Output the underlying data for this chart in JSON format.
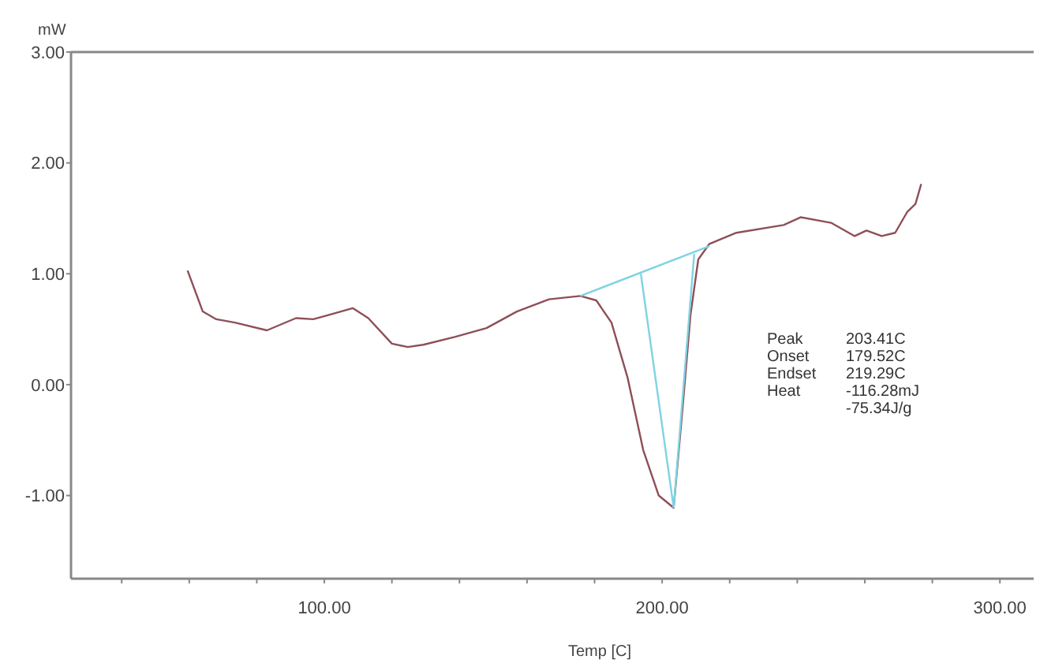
{
  "chart_data": {
    "type": "line",
    "xlabel": "Temp [C]",
    "ylabel": "mW",
    "xlim": [
      25,
      310
    ],
    "ylim": [
      -1.75,
      3
    ],
    "xticks": [
      {
        "value": 40,
        "label": null
      },
      {
        "value": 60,
        "label": null
      },
      {
        "value": 80,
        "label": null
      },
      {
        "value": 100,
        "label": "100.00"
      },
      {
        "value": 120,
        "label": null
      },
      {
        "value": 140,
        "label": null
      },
      {
        "value": 160,
        "label": null
      },
      {
        "value": 180,
        "label": null
      },
      {
        "value": 200,
        "label": "200.00"
      },
      {
        "value": 220,
        "label": null
      },
      {
        "value": 240,
        "label": null
      },
      {
        "value": 260,
        "label": null
      },
      {
        "value": 280,
        "label": null
      },
      {
        "value": 300,
        "label": "300.00"
      }
    ],
    "yticks": [
      {
        "value": -1,
        "label": "-1.00"
      },
      {
        "value": 0,
        "label": "0.00"
      },
      {
        "value": 1,
        "label": "1.00"
      },
      {
        "value": 2,
        "label": "2.00"
      },
      {
        "value": 3,
        "label": "3.00"
      }
    ],
    "grid": false,
    "marker": "none",
    "line_style": "solid",
    "series": [
      {
        "color": "#8e4f58",
        "x": [
          59.5,
          64,
          68,
          73.5,
          83,
          91.6,
          96.7,
          101.4,
          108.4,
          113,
          120,
          124.7,
          129.3,
          138.6,
          148,
          157,
          166.5,
          175.8,
          180.5,
          185,
          189.8,
          194.4,
          199,
          203.41,
          206,
          208.4,
          210.7,
          214,
          222,
          236,
          241,
          250,
          257,
          260.5,
          265,
          269,
          272.6,
          275,
          276.7
        ],
        "values": [
          1.03,
          0.66,
          0.59,
          0.56,
          0.49,
          0.6,
          0.59,
          0.63,
          0.69,
          0.6,
          0.37,
          0.34,
          0.36,
          0.43,
          0.51,
          0.66,
          0.77,
          0.8,
          0.76,
          0.56,
          0.06,
          -0.59,
          -1.0,
          -1.11,
          -0.23,
          0.63,
          1.13,
          1.27,
          1.37,
          1.44,
          1.51,
          1.46,
          1.34,
          1.39,
          1.34,
          1.37,
          1.56,
          1.63,
          1.81
        ]
      },
      {
        "color": "#7fd3e3",
        "x": [
          175.8,
          214
        ],
        "values": [
          0.8,
          1.25
        ]
      },
      {
        "color": "#7fd3e3",
        "x": [
          193.7,
          203.41
        ],
        "values": [
          1.0,
          -1.11
        ]
      },
      {
        "color": "#7fd3e3",
        "x": [
          209.5,
          203.41
        ],
        "values": [
          1.18,
          -1.11
        ]
      }
    ],
    "annotations": [
      "Peak\t203.41C",
      "Onset\t179.52C",
      "Endset\t219.29C",
      "Heat\t-116.28mJ",
      "\t-75.34J/g"
    ]
  }
}
